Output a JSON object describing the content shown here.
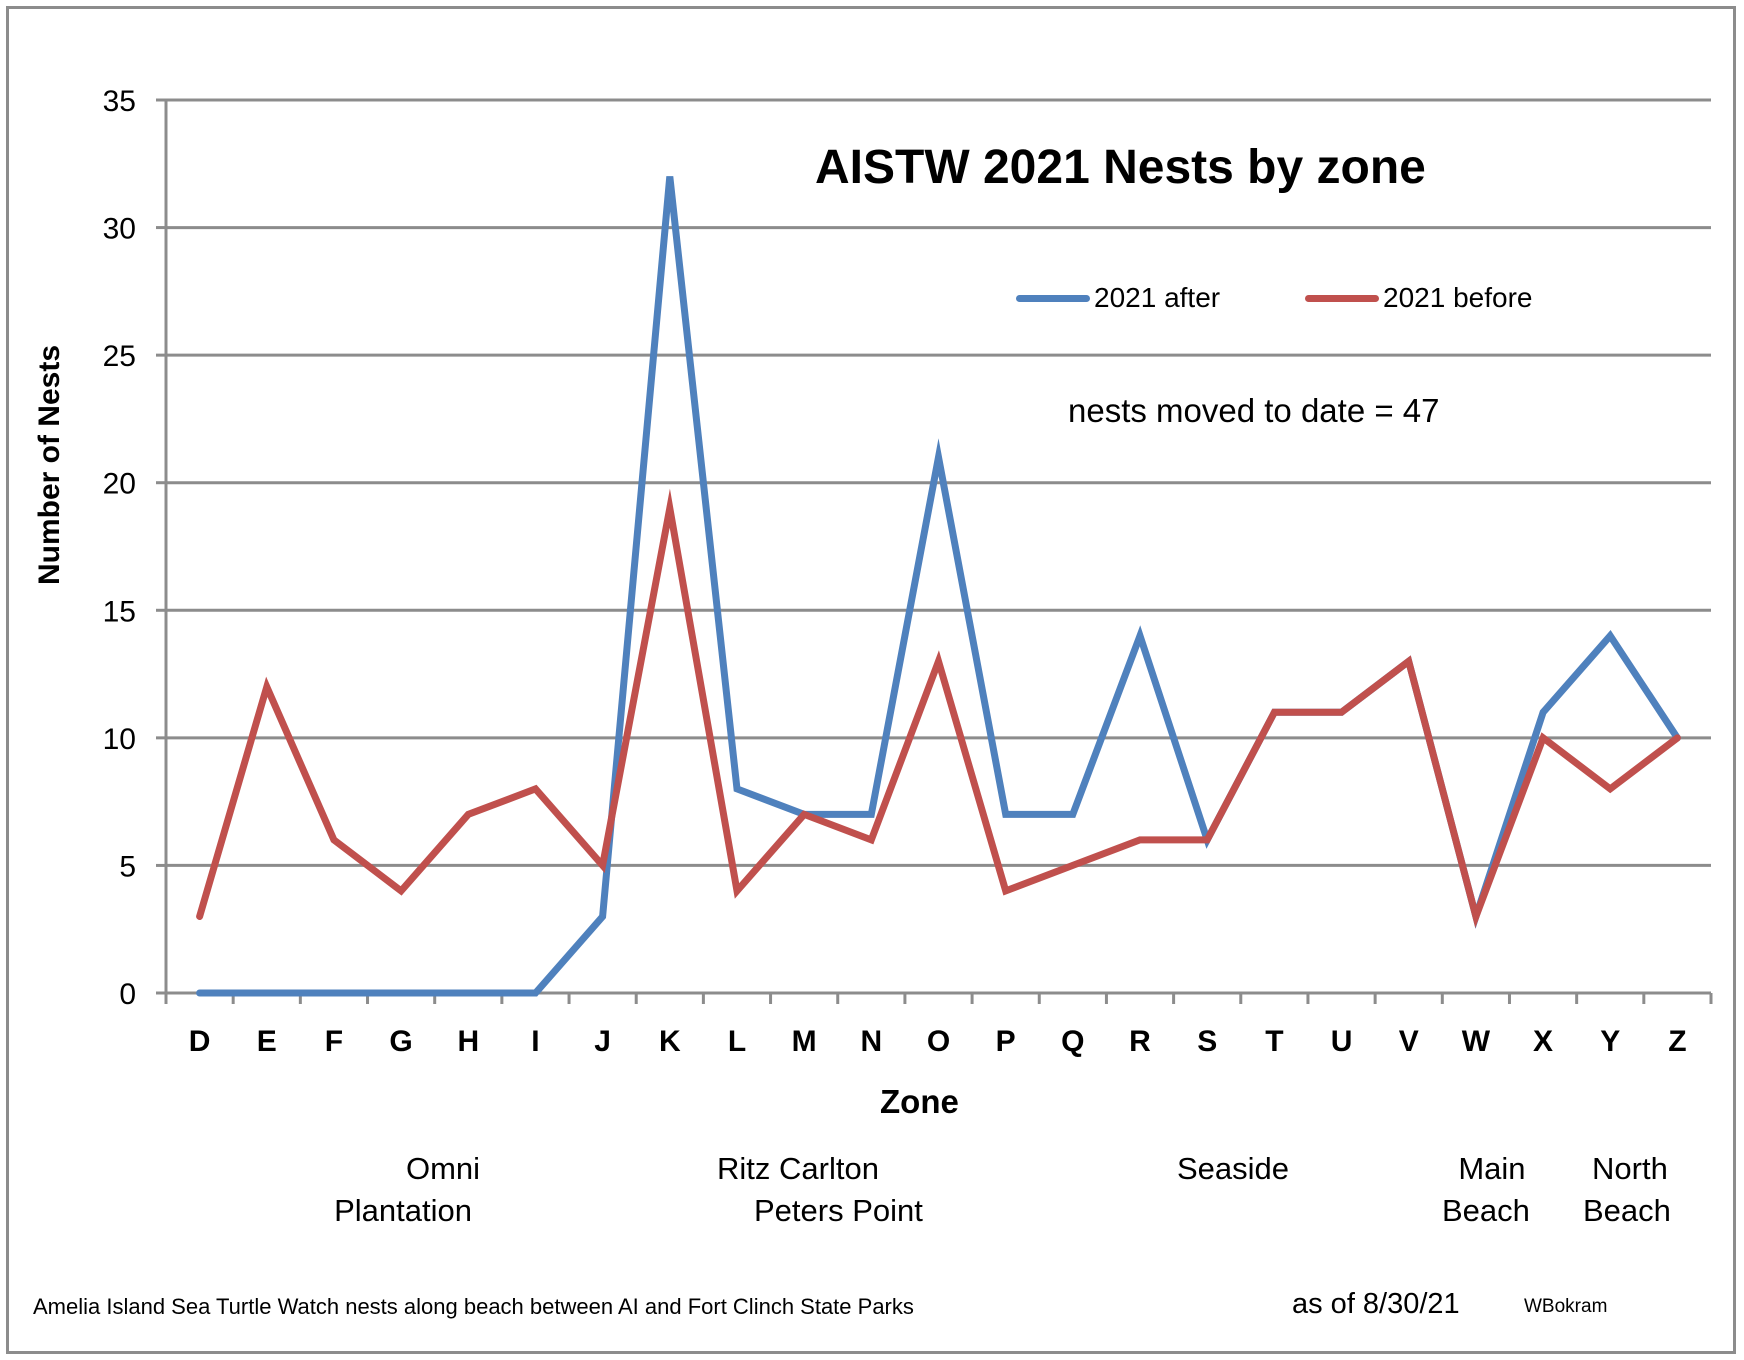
{
  "chart_data": {
    "type": "line",
    "title": "AISTW 2021 Nests by zone",
    "xlabel": "Zone",
    "ylabel": "Number of Nests",
    "ylim": [
      0,
      35
    ],
    "yticks": [
      0,
      5,
      10,
      15,
      20,
      25,
      30,
      35
    ],
    "grid": true,
    "legend_position": "top-right",
    "categories": [
      "D",
      "E",
      "F",
      "G",
      "H",
      "I",
      "J",
      "K",
      "L",
      "M",
      "N",
      "O",
      "P",
      "Q",
      "R",
      "S",
      "T",
      "U",
      "V",
      "W",
      "X",
      "Y",
      "Z"
    ],
    "series": [
      {
        "name": "2021 after",
        "color": "#4f81bd",
        "values": [
          0,
          0,
          0,
          0,
          0,
          0,
          3,
          32,
          8,
          7,
          7,
          21,
          7,
          7,
          14,
          6,
          11,
          11,
          13,
          3,
          11,
          14,
          10
        ]
      },
      {
        "name": "2021 before",
        "color": "#c0504d",
        "values": [
          3,
          12,
          6,
          4,
          7,
          8,
          5,
          19,
          4,
          7,
          6,
          13,
          4,
          5,
          6,
          6,
          11,
          11,
          13,
          3,
          10,
          8,
          10
        ]
      }
    ],
    "annotation": "nests moved to date = 47",
    "section_labels": [
      {
        "lines": [
          "Omni",
          "Plantation"
        ]
      },
      {
        "lines": [
          "Ritz Carlton",
          "Peters Point"
        ]
      },
      {
        "lines": [
          "Seaside"
        ]
      },
      {
        "lines": [
          "Main",
          "Beach"
        ]
      },
      {
        "lines": [
          "North",
          "Beach"
        ]
      }
    ],
    "footer": {
      "note": "Amelia Island Sea Turtle Watch nests along beach between AI and Fort Clinch State Parks",
      "date": "as of 8/30/21",
      "author": "WBokram"
    }
  }
}
